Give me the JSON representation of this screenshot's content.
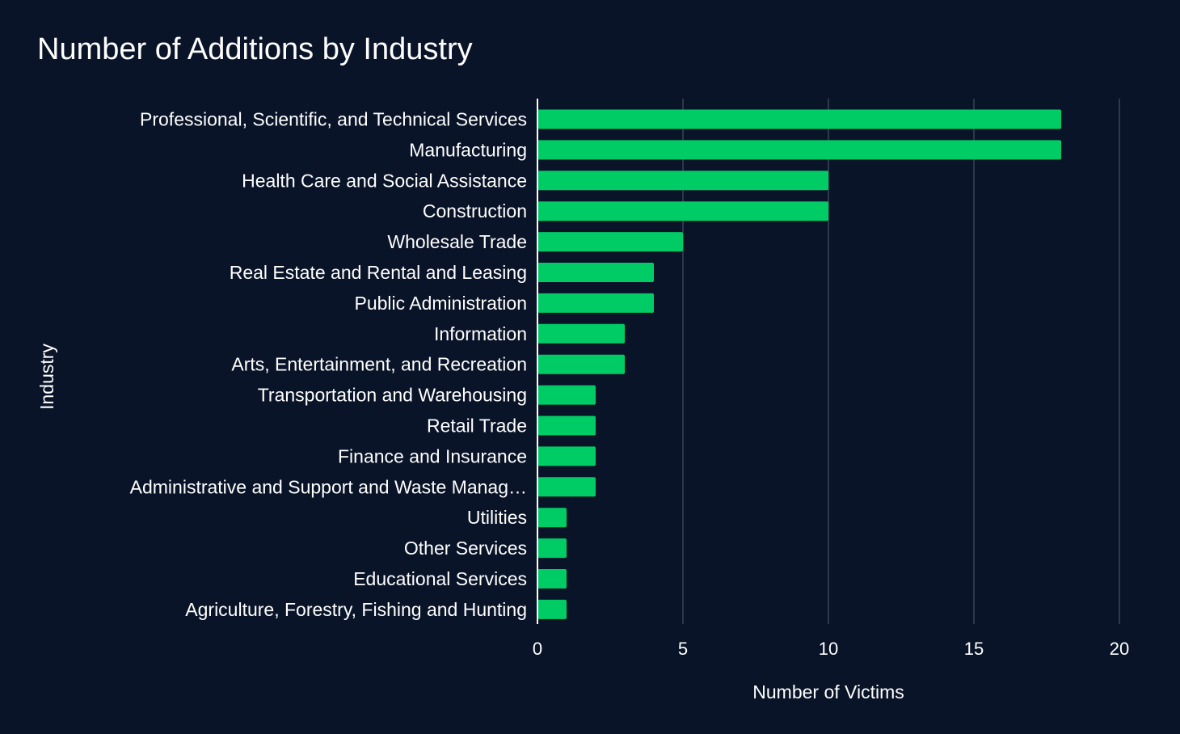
{
  "chart_data": {
    "type": "bar",
    "orientation": "horizontal",
    "title": "Number of Additions by Industry",
    "xlabel": "Number of Victims",
    "ylabel": "Industry",
    "categories": [
      "Professional, Scientific, and Technical Services",
      "Manufacturing",
      "Health Care and Social Assistance",
      "Construction",
      "Wholesale Trade",
      "Real Estate and Rental and Leasing",
      "Public Administration",
      "Information",
      "Arts, Entertainment, and Recreation",
      "Transportation and Warehousing",
      "Retail Trade",
      "Finance and Insurance",
      "Administrative and Support and Waste Manag…",
      "Utilities",
      "Other Services",
      "Educational Services",
      "Agriculture, Forestry, Fishing and Hunting"
    ],
    "values": [
      18,
      18,
      10,
      10,
      5,
      4,
      4,
      3,
      3,
      2,
      2,
      2,
      2,
      1,
      1,
      1,
      1
    ],
    "xlim": [
      0,
      20
    ],
    "xticks": [
      0,
      5,
      10,
      15,
      20
    ],
    "grid": true,
    "legend": "none",
    "colors": {
      "background": "#0a1428",
      "bar": "#00cc66",
      "grid": "#3b4556",
      "text": "#ffffff"
    }
  }
}
